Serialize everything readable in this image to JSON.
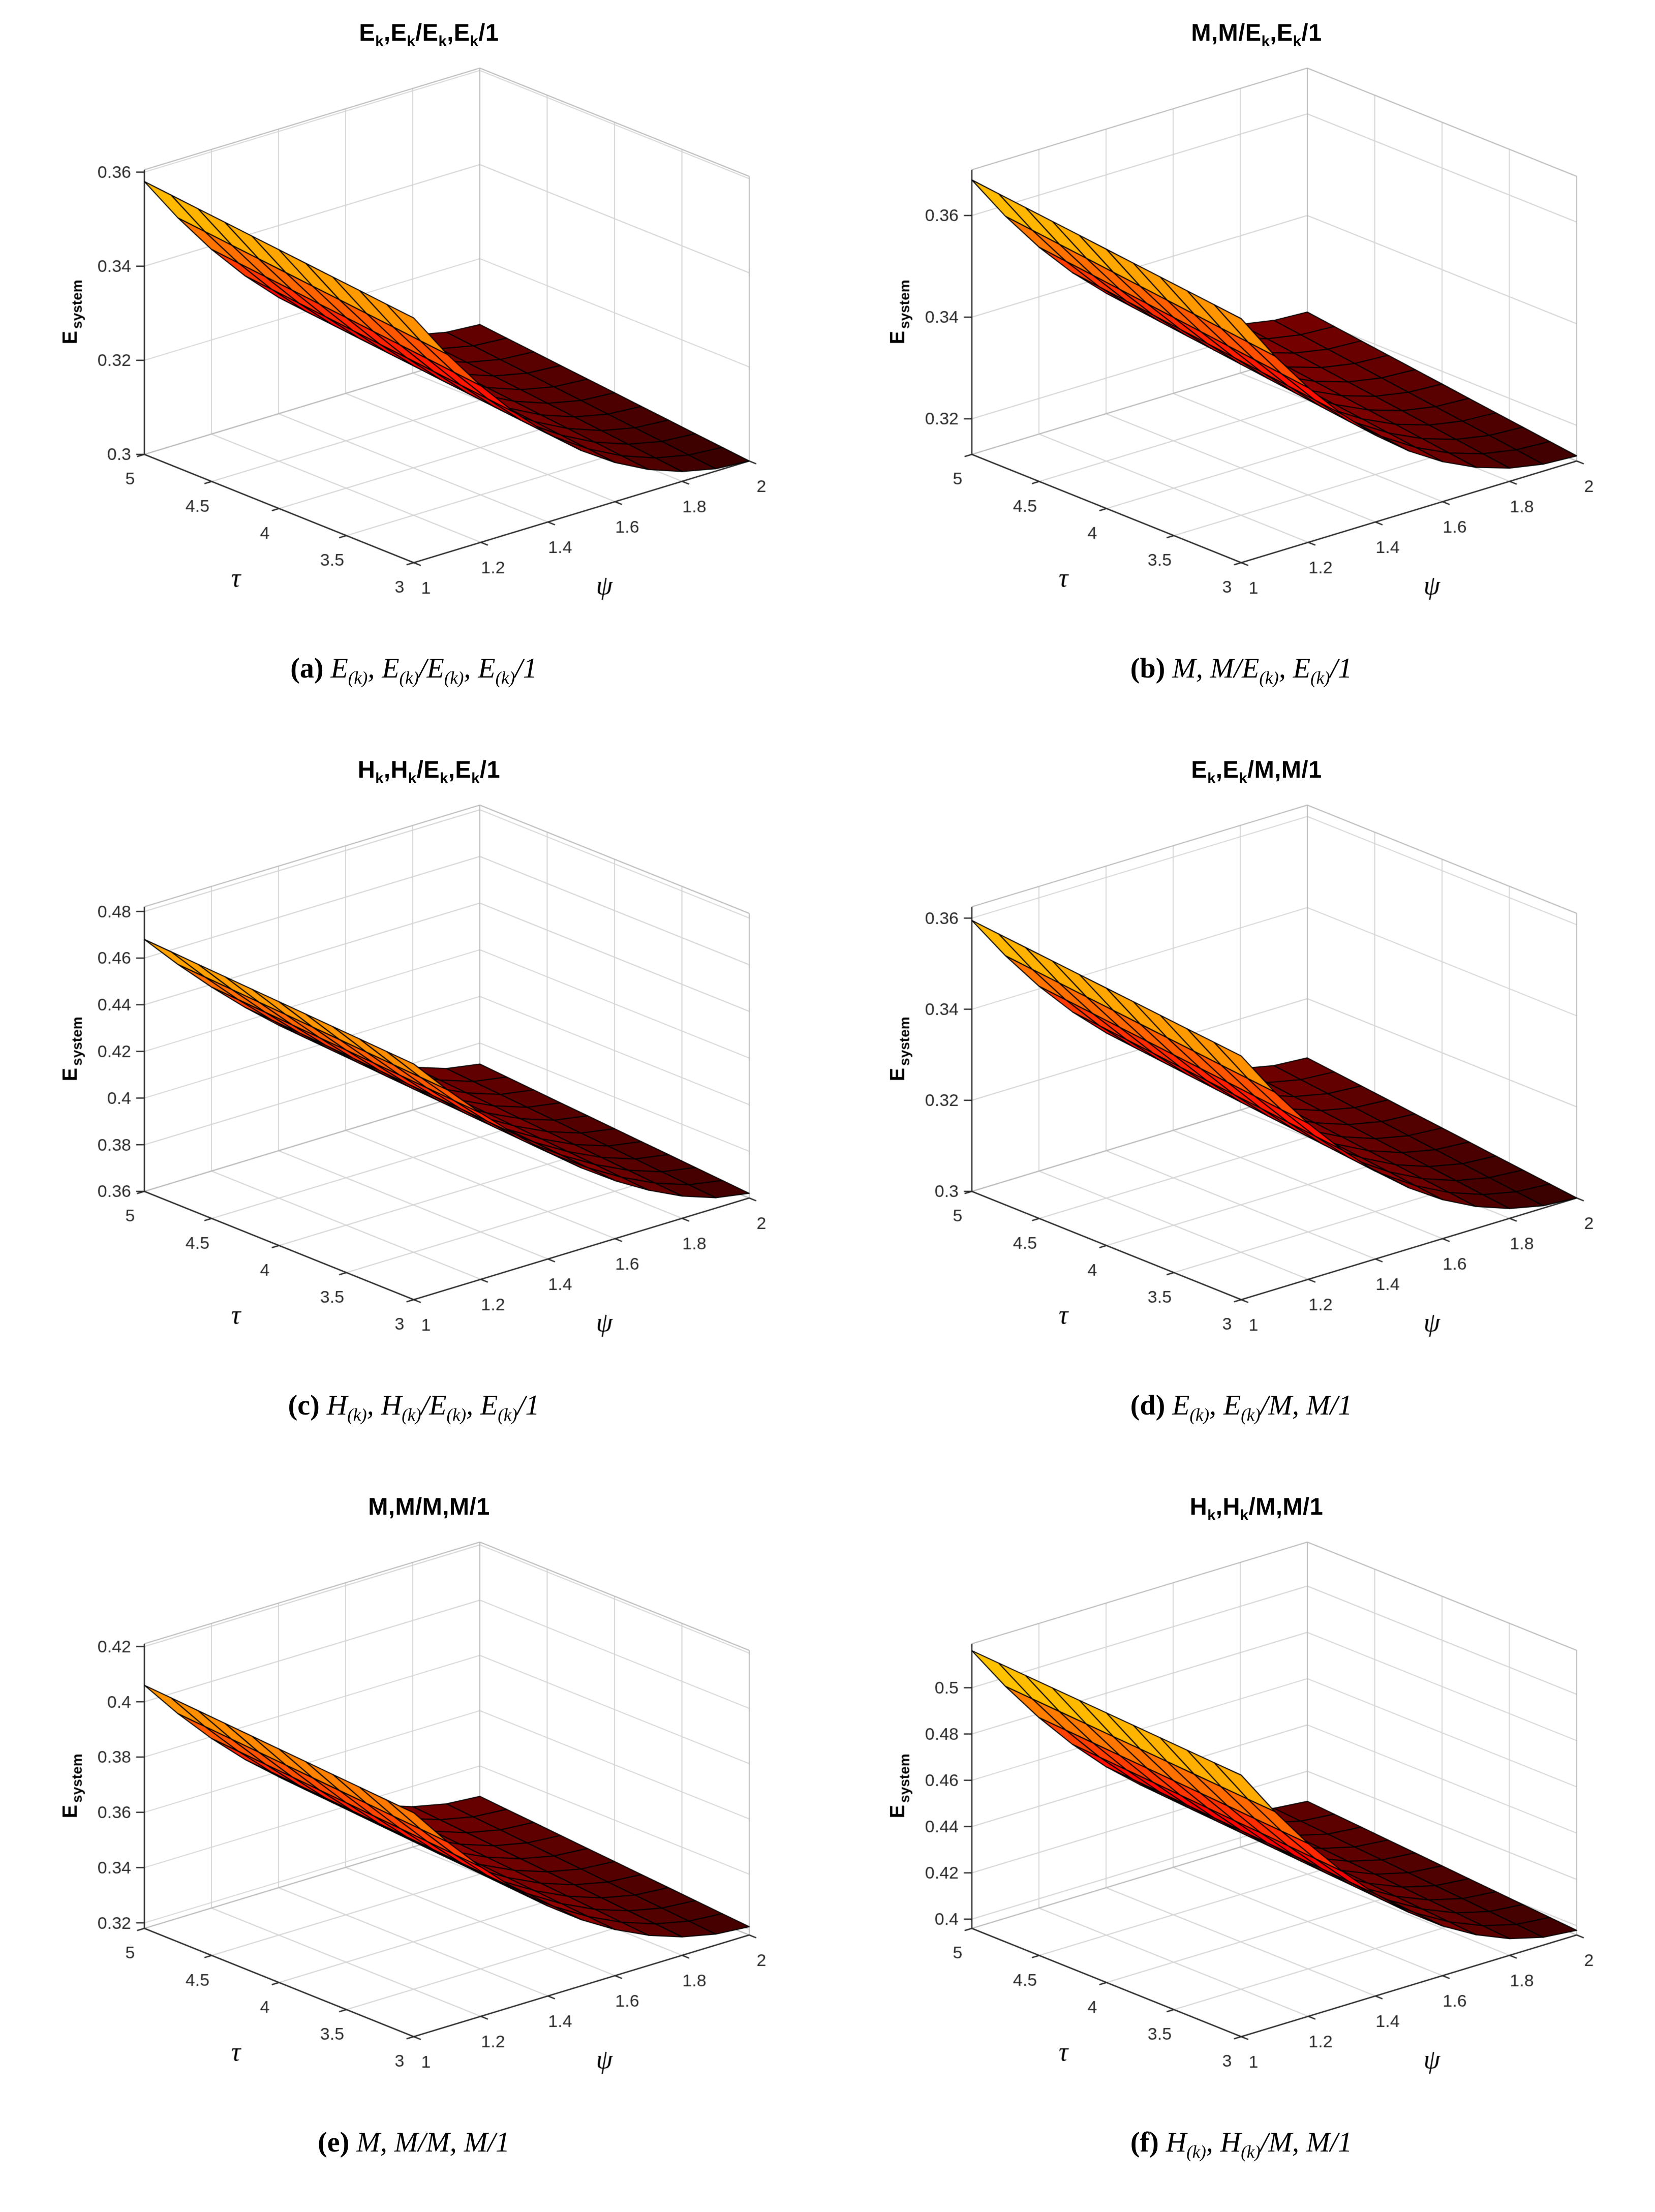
{
  "figure": {
    "background": "#ffffff",
    "columns": 2,
    "rows": 3
  },
  "axis_common": {
    "xlabel": "ψ",
    "ylabel": "τ",
    "zlabel": "E_system",
    "x_ticks": [
      1,
      1.2,
      1.4,
      1.6,
      1.8,
      2
    ],
    "y_ticks": [
      3,
      3.5,
      4,
      4.5,
      5
    ],
    "xlim": [
      1,
      2
    ],
    "ylim": [
      3,
      5
    ],
    "grid_color": "#d4d4d4",
    "wall_edge_color": "#b9b9b9",
    "axis_color": "#262626",
    "tick_label_color": "#262626",
    "surface_edge_color": "#000000",
    "colormap": "hot",
    "colormap_t_range": [
      0.08,
      0.73
    ]
  },
  "chart_data": [
    {
      "panel": "a",
      "type": "surface",
      "title": "E_k,E_k/E_k,E_k/1",
      "caption_label": "(a)",
      "caption_math": "E_(k), E_(k)/E_(k), E_(k)/1",
      "zlabel": "E_system",
      "z_ticks": [
        0.3,
        0.32,
        0.34,
        0.36
      ],
      "zlim": [
        0.3,
        0.3605
      ],
      "surface_model": {
        "grid_n": 10,
        "psi_decay_exponent": 2.0,
        "z_at": {
          "psi1_tau3": 0.352,
          "psi1_tau5": 0.358,
          "psi2_tau3": 0.3,
          "psi2_tau5": 0.306
        }
      }
    },
    {
      "panel": "b",
      "type": "surface",
      "title": "M,M/E_k,E_k/1",
      "caption_label": "(b)",
      "caption_math": "M, M/E_(k), E_(k)/1",
      "zlabel": "E_system",
      "z_ticks": [
        0.32,
        0.34,
        0.36
      ],
      "zlim": [
        0.313,
        0.369
      ],
      "surface_model": {
        "grid_n": 10,
        "psi_decay_exponent": 2.1,
        "z_at": {
          "psi1_tau3": 0.361,
          "psi1_tau5": 0.367,
          "psi2_tau3": 0.314,
          "psi2_tau5": 0.321
        }
      }
    },
    {
      "panel": "c",
      "type": "surface",
      "title": "H_k,H_k/E_k,E_k/1",
      "caption_label": "(c)",
      "caption_math": "H_(k), H_(k)/E_(k), E_(k)/1",
      "zlabel": "E_system",
      "z_ticks": [
        0.36,
        0.38,
        0.4,
        0.42,
        0.44,
        0.46,
        0.48
      ],
      "zlim": [
        0.36,
        0.482
      ],
      "surface_model": {
        "grid_n": 10,
        "psi_decay_exponent": 1.6,
        "z_at": {
          "psi1_tau3": 0.461,
          "psi1_tau5": 0.468,
          "psi2_tau3": 0.362,
          "psi2_tau5": 0.371
        }
      }
    },
    {
      "panel": "d",
      "type": "surface",
      "title": "E_k,E_k/M,M/1",
      "caption_label": "(d)",
      "caption_math": "E_(k), E_(k)/M, M/1",
      "zlabel": "E_system",
      "z_ticks": [
        0.3,
        0.32,
        0.34,
        0.36
      ],
      "zlim": [
        0.3,
        0.3625
      ],
      "surface_model": {
        "grid_n": 10,
        "psi_decay_exponent": 2.0,
        "z_at": {
          "psi1_tau3": 0.3535,
          "psi1_tau5": 0.3595,
          "psi2_tau3": 0.3,
          "psi2_tau5": 0.307
        }
      }
    },
    {
      "panel": "e",
      "type": "surface",
      "title": "M,M/M,M/1",
      "caption_label": "(e)",
      "caption_math": "M, M/M, M/1",
      "zlabel": "E_system",
      "z_ticks": [
        0.32,
        0.34,
        0.36,
        0.38,
        0.4,
        0.42
      ],
      "zlim": [
        0.318,
        0.421
      ],
      "surface_model": {
        "grid_n": 10,
        "psi_decay_exponent": 1.9,
        "z_at": {
          "psi1_tau3": 0.399,
          "psi1_tau5": 0.406,
          "psi2_tau3": 0.321,
          "psi2_tau5": 0.329
        }
      }
    },
    {
      "panel": "f",
      "type": "surface",
      "title": "H_k,H_k/M,M/1",
      "caption_label": "(f)",
      "caption_math": "H_(k), H_(k)/M, M/1",
      "zlabel": "E_system",
      "z_ticks": [
        0.4,
        0.42,
        0.44,
        0.46,
        0.48,
        0.5
      ],
      "zlim": [
        0.396,
        0.519
      ],
      "surface_model": {
        "grid_n": 10,
        "psi_decay_exponent": 1.9,
        "z_at": {
          "psi1_tau3": 0.509,
          "psi1_tau5": 0.516,
          "psi2_tau3": 0.398,
          "psi2_tau5": 0.407
        }
      }
    }
  ]
}
